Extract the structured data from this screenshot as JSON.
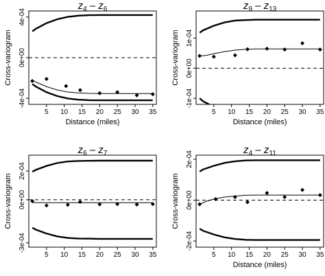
{
  "chart_data": [
    {
      "type": "line",
      "title": "z4 - z6",
      "title_main": "z",
      "title_sub1": "4",
      "title_sep": " – ",
      "title_sub2": "6",
      "xlabel": "Distance (miles)",
      "ylabel": "Cross-variogram",
      "xlim": [
        0,
        36
      ],
      "ylim": [
        -0.00046,
        0.00046
      ],
      "x_ticks": [
        5,
        10,
        15,
        20,
        25,
        30,
        35
      ],
      "y_ticks": [
        -0.0004,
        0,
        0.0004
      ],
      "y_tick_labels": [
        "-4e-04",
        "0e+00",
        "4e-04"
      ],
      "grid": false,
      "envelope_upper": {
        "x": [
          1,
          2,
          5,
          8,
          11,
          14,
          17,
          20,
          25,
          30,
          35
        ],
        "y": [
          0.00026,
          0.000285,
          0.00034,
          0.000378,
          0.000402,
          0.000414,
          0.000419,
          0.00042,
          0.00042,
          0.00042,
          0.00042
        ]
      },
      "envelope_lower": {
        "x": [
          1,
          2,
          5,
          8,
          11,
          14,
          17,
          20,
          25,
          30,
          35
        ],
        "y": [
          -0.00026,
          -0.000285,
          -0.00034,
          -0.000378,
          -0.000402,
          -0.000414,
          -0.000419,
          -0.00042,
          -0.00042,
          -0.00042,
          -0.00042
        ]
      },
      "fitted": {
        "x": [
          1,
          2,
          5,
          8,
          11,
          14,
          17,
          20,
          25,
          30,
          35
        ],
        "y": [
          -0.00022,
          -0.00024,
          -0.000285,
          -0.000318,
          -0.000338,
          -0.000348,
          -0.000352,
          -0.000353,
          -0.000353,
          -0.000353,
          -0.000353
        ]
      },
      "points": {
        "x": [
          1,
          5,
          10.5,
          14.5,
          20,
          25,
          30.5,
          35
        ],
        "y": [
          -0.00023,
          -0.00021,
          -0.00028,
          -0.00032,
          -0.00035,
          -0.00034,
          -0.00037,
          -0.00036
        ]
      },
      "reference_line": 0
    },
    {
      "type": "line",
      "title": "z9 - z13",
      "title_main": "z",
      "title_sub1": "9",
      "title_sep": " – ",
      "title_sub2": "13",
      "xlabel": "Distance (miles)",
      "ylabel": "Cross-variogram",
      "xlim": [
        0,
        36
      ],
      "ylim": [
        -0.00012,
        0.00019
      ],
      "x_ticks": [
        5,
        10,
        15,
        20,
        25,
        30,
        35
      ],
      "y_ticks": [
        -0.0001,
        0,
        0.0001
      ],
      "y_tick_labels": [
        "-1e-04",
        "0e+00",
        "1e-04"
      ],
      "grid": false,
      "envelope_upper": {
        "x": [
          1,
          2,
          5,
          8,
          11,
          14,
          17,
          20,
          25,
          30,
          35
        ],
        "y": [
          0.000118,
          0.000126,
          0.000141,
          0.000152,
          0.000158,
          0.00016,
          0.000161,
          0.000161,
          0.000161,
          0.000161,
          0.000161
        ]
      },
      "envelope_lower": {
        "x": [
          1,
          2,
          5,
          8,
          11,
          14,
          17,
          20,
          25,
          30,
          35
        ],
        "y": [
          -0.0001,
          -0.00011,
          -0.000128,
          -0.000142,
          -0.00015,
          -0.000153,
          -0.000155,
          -0.000155,
          -0.000155,
          -0.000155,
          -0.000155
        ]
      },
      "fitted": {
        "x": [
          1,
          3,
          5,
          8,
          11,
          14,
          17,
          20,
          25,
          30,
          35
        ],
        "y": [
          4e-05,
          4.3e-05,
          4.8e-05,
          5.5e-05,
          6e-05,
          6.3e-05,
          6.4e-05,
          6.4e-05,
          6.4e-05,
          6.4e-05,
          6.4e-05
        ]
      },
      "points": {
        "x": [
          1,
          5,
          11,
          14.5,
          20,
          25,
          30,
          35
        ],
        "y": [
          4.1e-05,
          3.8e-05,
          4.3e-05,
          6.3e-05,
          6.5e-05,
          6.2e-05,
          8.3e-05,
          6.2e-05
        ]
      },
      "reference_line": 0
    },
    {
      "type": "line",
      "title": "z6 - z7",
      "title_main": "z",
      "title_sub1": "6",
      "title_sep": " – ",
      "title_sub2": "7",
      "xlabel": "",
      "ylabel": "Cross-variogram",
      "xlim": [
        0,
        36
      ],
      "ylim": [
        -0.00033,
        0.00031
      ],
      "x_ticks": [
        5,
        10,
        15,
        20,
        25,
        30,
        35
      ],
      "y_ticks": [
        -0.0003,
        0,
        0.0002
      ],
      "y_tick_labels": [
        "-3e-04",
        "0e+00",
        "2e-04"
      ],
      "grid": false,
      "envelope_upper": {
        "x": [
          1,
          2,
          5,
          8,
          11,
          14,
          17,
          20,
          25,
          30,
          35
        ],
        "y": [
          0.000195,
          0.000208,
          0.000235,
          0.000255,
          0.000266,
          0.00027,
          0.000271,
          0.000272,
          0.000272,
          0.000272,
          0.000272
        ]
      },
      "envelope_lower": {
        "x": [
          1,
          2,
          5,
          8,
          11,
          14,
          17,
          20,
          25,
          30,
          35
        ],
        "y": [
          -0.000195,
          -0.000208,
          -0.000235,
          -0.000255,
          -0.000266,
          -0.00027,
          -0.000271,
          -0.000272,
          -0.000272,
          -0.000272,
          -0.000272
        ]
      },
      "fitted": {
        "x": [
          1,
          5,
          10,
          15,
          20,
          25,
          30,
          35
        ],
        "y": [
          -2e-05,
          -2.1e-05,
          -2.1e-05,
          -2.1e-05,
          -2.1e-05,
          -2.1e-05,
          -2.1e-05,
          -2.1e-05
        ]
      },
      "points": {
        "x": [
          1,
          5,
          11,
          14.5,
          20,
          25,
          30.5,
          35
        ],
        "y": [
          -1e-05,
          -4e-05,
          -3.5e-05,
          -1.5e-05,
          -3.2e-05,
          -3e-05,
          -3.3e-05,
          -3e-05
        ]
      },
      "reference_line": 0
    },
    {
      "type": "line",
      "title": "z4 - z11",
      "title_main": "z",
      "title_sub1": "4",
      "title_sep": " – ",
      "title_sub2": "11",
      "xlabel": "Distance (miles)",
      "ylabel": "Cross-variogram",
      "xlim": [
        0,
        36
      ],
      "ylim": [
        -0.00023,
        0.00022
      ],
      "x_ticks": [
        5,
        10,
        15,
        20,
        25,
        30,
        35
      ],
      "y_ticks": [
        -0.0002,
        0,
        0.0002
      ],
      "y_tick_labels": [
        "-2e-04",
        "0e+00",
        "2e-04"
      ],
      "grid": false,
      "envelope_upper": {
        "x": [
          1,
          2,
          5,
          8,
          11,
          14,
          17,
          20,
          25,
          30,
          35
        ],
        "y": [
          0.00014,
          0.00015,
          0.000168,
          0.000182,
          0.00019,
          0.000194,
          0.000195,
          0.000195,
          0.000195,
          0.000195,
          0.000195
        ]
      },
      "envelope_lower": {
        "x": [
          1,
          2,
          5,
          8,
          11,
          14,
          17,
          20,
          25,
          30,
          35
        ],
        "y": [
          -0.00014,
          -0.00015,
          -0.000168,
          -0.000182,
          -0.00019,
          -0.000194,
          -0.000195,
          -0.000195,
          -0.000195,
          -0.000195,
          -0.000195
        ]
      },
      "fitted": {
        "x": [
          1,
          3,
          5,
          8,
          11,
          14,
          17,
          20,
          25,
          30,
          35
        ],
        "y": [
          -2e-05,
          -5e-06,
          5e-06,
          1.5e-05,
          2e-05,
          2.4e-05,
          2.5e-05,
          2.5e-05,
          2.5e-05,
          2.5e-05,
          2.5e-05
        ]
      },
      "points": {
        "x": [
          1,
          5.5,
          11,
          14.5,
          20,
          25,
          30,
          35
        ],
        "y": [
          -2e-05,
          5e-06,
          1.5e-05,
          -1e-05,
          3.5e-05,
          1.5e-05,
          5e-05,
          2.5e-05
        ]
      },
      "reference_line": 0
    }
  ],
  "colors": {
    "line": "#000000",
    "background": "#ffffff",
    "points": "#000000"
  }
}
